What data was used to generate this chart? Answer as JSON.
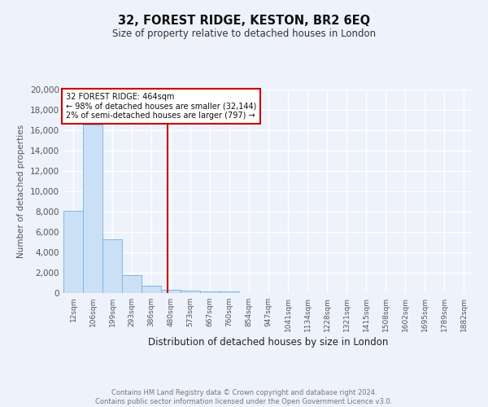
{
  "title1": "32, FOREST RIDGE, KESTON, BR2 6EQ",
  "title2": "Size of property relative to detached houses in London",
  "xlabel": "Distribution of detached houses by size in London",
  "ylabel": "Number of detached properties",
  "bar_color": "#cce0f5",
  "bar_edge_color": "#7ab8e8",
  "vline_color": "#cc0000",
  "background_color": "#eef2fb",
  "grid_color": "#ffffff",
  "footer1": "Contains HM Land Registry data © Crown copyright and database right 2024.",
  "footer2": "Contains public sector information licensed under the Open Government Licence v3.0.",
  "annotation_line1": "32 FOREST RIDGE: 464sqm",
  "annotation_line2": "← 98% of detached houses are smaller (32,144)",
  "annotation_line3": "2% of semi-detached houses are larger (797) →",
  "vline_x_index": 4.84,
  "categories": [
    "12sqm",
    "106sqm",
    "199sqm",
    "293sqm",
    "386sqm",
    "480sqm",
    "573sqm",
    "667sqm",
    "760sqm",
    "854sqm",
    "947sqm",
    "1041sqm",
    "1134sqm",
    "1228sqm",
    "1321sqm",
    "1415sqm",
    "1508sqm",
    "1602sqm",
    "1695sqm",
    "1789sqm",
    "1882sqm"
  ],
  "values": [
    8100,
    16600,
    5300,
    1750,
    750,
    350,
    250,
    200,
    175,
    0,
    0,
    0,
    0,
    0,
    0,
    0,
    0,
    0,
    0,
    0,
    0
  ],
  "ylim": [
    0,
    20000
  ],
  "yticks": [
    0,
    2000,
    4000,
    6000,
    8000,
    10000,
    12000,
    14000,
    16000,
    18000,
    20000
  ]
}
